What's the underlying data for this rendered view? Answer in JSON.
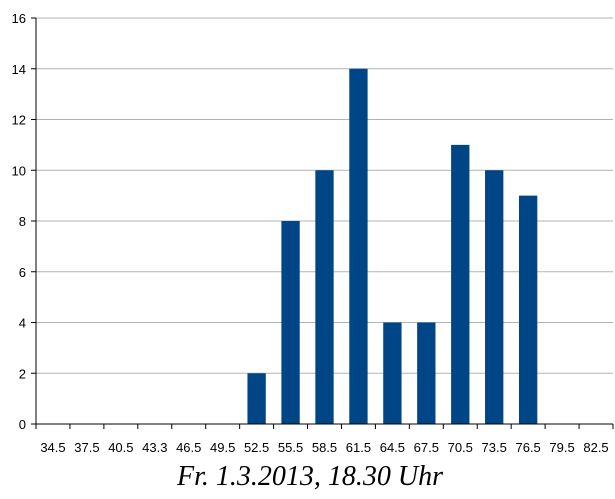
{
  "chart_data": {
    "type": "bar",
    "title": "Fr. 1.3.2013, 18.30 Uhr",
    "xlabel": "",
    "ylabel": "",
    "categories": [
      "34.5",
      "37.5",
      "40.5",
      "43.3",
      "46.5",
      "49.5",
      "52.5",
      "55.5",
      "58.5",
      "61.5",
      "64.5",
      "67.5",
      "70.5",
      "73.5",
      "76.5",
      "79.5",
      "82.5"
    ],
    "values": [
      0,
      0,
      0,
      0,
      0,
      0,
      2,
      8,
      10,
      14,
      4,
      4,
      11,
      10,
      9,
      0,
      0
    ],
    "ylim": [
      0,
      16
    ],
    "yticks": [
      0,
      2,
      4,
      6,
      8,
      10,
      12,
      14,
      16
    ],
    "grid": true,
    "legend": "none",
    "bar_color": "#004586",
    "grid_color": "#b3b3b3",
    "axis_color": "#000000"
  }
}
